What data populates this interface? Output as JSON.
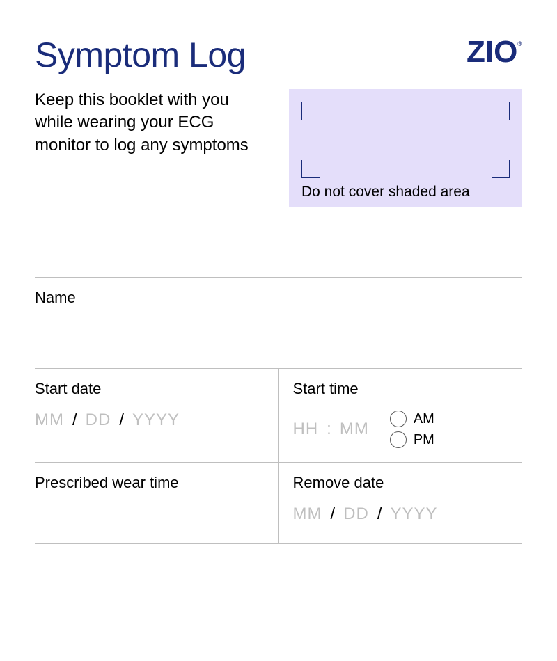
{
  "colors": {
    "brand": "#1a2c7a",
    "text": "#000000",
    "placeholder": "#bfbfbf",
    "divider": "#bfbfbf",
    "shaded_bg": "#e4defa",
    "page_bg": "#ffffff",
    "radio_border": "#5a5a5a"
  },
  "typography": {
    "title_fontsize": 50,
    "title_weight": 300,
    "logo_fontsize": 44,
    "logo_weight": 700,
    "body_fontsize": 24,
    "label_fontsize": 22,
    "placeholder_fontsize": 24,
    "caption_fontsize": 21,
    "radio_label_fontsize": 20
  },
  "header": {
    "title": "Symptom Log",
    "logo_text": "ZIO",
    "logo_mark": "®"
  },
  "intro": {
    "text": "Keep this booklet with you while wearing your ECG monitor to log any symptoms"
  },
  "shaded": {
    "caption": "Do not cover shaded area"
  },
  "form": {
    "name": {
      "label": "Name"
    },
    "start_date": {
      "label": "Start date",
      "placeholders": {
        "mm": "MM",
        "dd": "DD",
        "yyyy": "YYYY"
      },
      "separator": "/"
    },
    "start_time": {
      "label": "Start time",
      "placeholders": {
        "hh": "HH",
        "mm": "MM"
      },
      "separator": ":",
      "am_label": "AM",
      "pm_label": "PM"
    },
    "wear_time": {
      "label": "Prescribed wear time"
    },
    "remove_date": {
      "label": "Remove date",
      "placeholders": {
        "mm": "MM",
        "dd": "DD",
        "yyyy": "YYYY"
      },
      "separator": "/"
    }
  }
}
